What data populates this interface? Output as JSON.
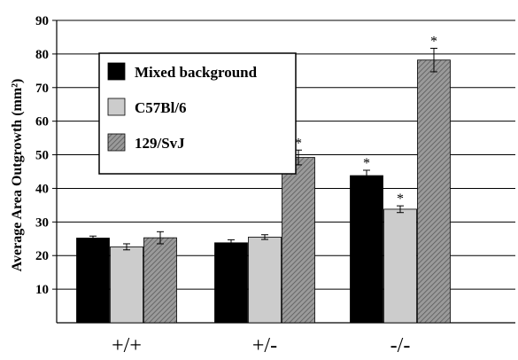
{
  "chart_data": {
    "type": "bar",
    "title": "",
    "xlabel": "",
    "ylabel": "Average Area Outgrowth (mm²)",
    "ylim": [
      0,
      90
    ],
    "yticks": [
      10,
      20,
      30,
      40,
      50,
      60,
      70,
      80,
      90
    ],
    "grid": true,
    "legend_position": "top-left",
    "categories": [
      "+/+",
      "+/-",
      "-/-"
    ],
    "series": [
      {
        "name": "Mixed background",
        "color": "#000000",
        "pattern": "solid",
        "values": [
          25.2,
          23.8,
          43.8
        ],
        "errors": [
          0.6,
          0.9,
          1.6
        ],
        "significant": [
          false,
          false,
          true
        ]
      },
      {
        "name": "C57Bl/6",
        "color": "#cccccc",
        "pattern": "solid",
        "values": [
          22.6,
          25.5,
          33.8
        ],
        "errors": [
          0.9,
          0.7,
          1.0
        ],
        "significant": [
          false,
          false,
          true
        ]
      },
      {
        "name": "129/SvJ",
        "color": "#888888",
        "pattern": "hatched",
        "values": [
          25.3,
          49.2,
          78.2
        ],
        "errors": [
          1.8,
          2.2,
          3.5
        ],
        "significant": [
          false,
          true,
          true
        ]
      }
    ],
    "significance_marker": "*"
  }
}
